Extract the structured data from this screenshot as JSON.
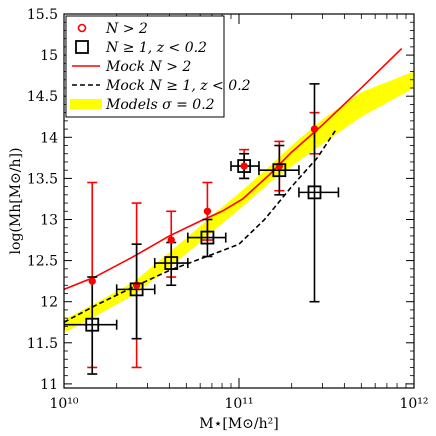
{
  "chart_data": {
    "type": "scatter",
    "xlabel": "M⋆[M⊙/h²]",
    "ylabel": "log(Mh[M⊙/h])",
    "xscale": "log",
    "xlim": [
      10000000000.0,
      1000000000000.0
    ],
    "ylim": [
      10.95,
      15.5
    ],
    "x_ticks": [
      {
        "value": 10000000000.0,
        "label": "10¹⁰"
      },
      {
        "value": 100000000000.0,
        "label": "10¹¹"
      },
      {
        "value": 1000000000000.0,
        "label": "10¹²"
      }
    ],
    "y_ticks": [
      {
        "value": 11,
        "label": "11"
      },
      {
        "value": 11.5,
        "label": "11.5"
      },
      {
        "value": 12,
        "label": "12"
      },
      {
        "value": 12.5,
        "label": "12.5"
      },
      {
        "value": 13,
        "label": "13"
      },
      {
        "value": 13.5,
        "label": "13.5"
      },
      {
        "value": 14,
        "label": "14"
      },
      {
        "value": 14.5,
        "label": "14.5"
      },
      {
        "value": 15,
        "label": "15"
      },
      {
        "value": 15.5,
        "label": "15.5"
      }
    ],
    "legend_position": "top-left",
    "legend": [
      {
        "label": "N > 2",
        "symbol": "circle",
        "color": "#ff0000"
      },
      {
        "label": "N ≥ 1, z < 0.2",
        "symbol": "square",
        "color": "#000000"
      },
      {
        "label": "Mock N > 2",
        "symbol": "solid-line",
        "color": "#ff0000"
      },
      {
        "label": "Mock N ≥ 1, z < 0.2",
        "symbol": "dashed-line",
        "color": "#000000"
      },
      {
        "label": "Models σ = 0.2",
        "symbol": "band",
        "color": "#ffff00"
      }
    ],
    "series": [
      {
        "name": "N > 2",
        "kind": "points-circle",
        "color": "#ff0000",
        "points": [
          {
            "x": 14500000000.0,
            "y": 12.25,
            "ylo": 11.2,
            "yhi": 13.45
          },
          {
            "x": 26000000000.0,
            "y": 12.2,
            "ylo": 11.2,
            "yhi": 13.2
          },
          {
            "x": 41000000000.0,
            "y": 12.75,
            "ylo": 12.3,
            "yhi": 13.1
          },
          {
            "x": 66000000000.0,
            "y": 13.1,
            "ylo": 12.75,
            "yhi": 13.45
          },
          {
            "x": 107000000000.0,
            "y": 13.65,
            "ylo": 13.5,
            "yhi": 13.85
          },
          {
            "x": 170000000000.0,
            "y": 13.65,
            "ylo": 13.35,
            "yhi": 13.95
          },
          {
            "x": 270000000000.0,
            "y": 14.1,
            "ylo": 13.8,
            "yhi": 14.3
          }
        ]
      },
      {
        "name": "N ≥ 1, z < 0.2",
        "kind": "points-square",
        "color": "#000000",
        "points": [
          {
            "x": 14500000000.0,
            "y": 11.72,
            "ylo": 11.12,
            "yhi": 12.3,
            "xlo": 10000000000.0,
            "xhi": 20000000000.0
          },
          {
            "x": 26000000000.0,
            "y": 12.15,
            "ylo": 11.55,
            "yhi": 12.7,
            "xlo": 20000000000.0,
            "xhi": 33000000000.0
          },
          {
            "x": 41000000000.0,
            "y": 12.47,
            "ylo": 12.2,
            "yhi": 12.72,
            "xlo": 33000000000.0,
            "xhi": 51000000000.0
          },
          {
            "x": 66000000000.0,
            "y": 12.78,
            "ylo": 12.55,
            "yhi": 13.0,
            "xlo": 51000000000.0,
            "xhi": 84000000000.0
          },
          {
            "x": 107000000000.0,
            "y": 13.65,
            "ylo": 13.5,
            "yhi": 13.8,
            "xlo": 90000000000.0,
            "xhi": 130000000000.0
          },
          {
            "x": 170000000000.0,
            "y": 13.6,
            "ylo": 13.3,
            "yhi": 13.9,
            "xlo": 130000000000.0,
            "xhi": 220000000000.0
          },
          {
            "x": 270000000000.0,
            "y": 13.33,
            "ylo": 12.0,
            "yhi": 14.65,
            "xlo": 220000000000.0,
            "xhi": 370000000000.0
          }
        ]
      },
      {
        "name": "Mock N > 2",
        "kind": "line-solid",
        "color": "#ff0000",
        "points": [
          {
            "x": 10000000000.0,
            "y": 12.15
          },
          {
            "x": 15000000000.0,
            "y": 12.3
          },
          {
            "x": 25000000000.0,
            "y": 12.55
          },
          {
            "x": 40000000000.0,
            "y": 12.8
          },
          {
            "x": 60000000000.0,
            "y": 12.98
          },
          {
            "x": 80000000000.0,
            "y": 13.1
          },
          {
            "x": 105000000000.0,
            "y": 13.25
          },
          {
            "x": 150000000000.0,
            "y": 13.55
          },
          {
            "x": 200000000000.0,
            "y": 13.82
          },
          {
            "x": 300000000000.0,
            "y": 14.15
          },
          {
            "x": 500000000000.0,
            "y": 14.6
          },
          {
            "x": 850000000000.0,
            "y": 15.08
          }
        ]
      },
      {
        "name": "Mock N ≥ 1, z < 0.2",
        "kind": "line-dashed",
        "color": "#000000",
        "points": [
          {
            "x": 10000000000.0,
            "y": 11.75
          },
          {
            "x": 15000000000.0,
            "y": 11.95
          },
          {
            "x": 25000000000.0,
            "y": 12.18
          },
          {
            "x": 40000000000.0,
            "y": 12.38
          },
          {
            "x": 60000000000.0,
            "y": 12.52
          },
          {
            "x": 80000000000.0,
            "y": 12.62
          },
          {
            "x": 100000000000.0,
            "y": 12.7
          },
          {
            "x": 140000000000.0,
            "y": 13.0
          },
          {
            "x": 200000000000.0,
            "y": 13.4
          },
          {
            "x": 280000000000.0,
            "y": 13.75
          },
          {
            "x": 360000000000.0,
            "y": 14.1
          }
        ]
      },
      {
        "name": "Models σ = 0.2",
        "kind": "band",
        "color": "#ffff00",
        "points": [
          {
            "x": 10000000000.0,
            "ylo": 11.62,
            "yhi": 11.78
          },
          {
            "x": 15000000000.0,
            "ylo": 11.82,
            "yhi": 11.98
          },
          {
            "x": 25000000000.0,
            "ylo": 12.08,
            "yhi": 12.24
          },
          {
            "x": 40000000000.0,
            "ylo": 12.42,
            "yhi": 12.6
          },
          {
            "x": 60000000000.0,
            "ylo": 12.72,
            "yhi": 12.92
          },
          {
            "x": 80000000000.0,
            "ylo": 12.95,
            "yhi": 13.15
          },
          {
            "x": 100000000000.0,
            "ylo": 13.12,
            "yhi": 13.32
          },
          {
            "x": 150000000000.0,
            "ylo": 13.45,
            "yhi": 13.65
          },
          {
            "x": 200000000000.0,
            "ylo": 13.65,
            "yhi": 13.9
          },
          {
            "x": 300000000000.0,
            "ylo": 13.92,
            "yhi": 14.22
          },
          {
            "x": 500000000000.0,
            "ylo": 14.25,
            "yhi": 14.55
          },
          {
            "x": 1000000000000.0,
            "ylo": 14.6,
            "yhi": 14.8
          }
        ]
      }
    ]
  }
}
